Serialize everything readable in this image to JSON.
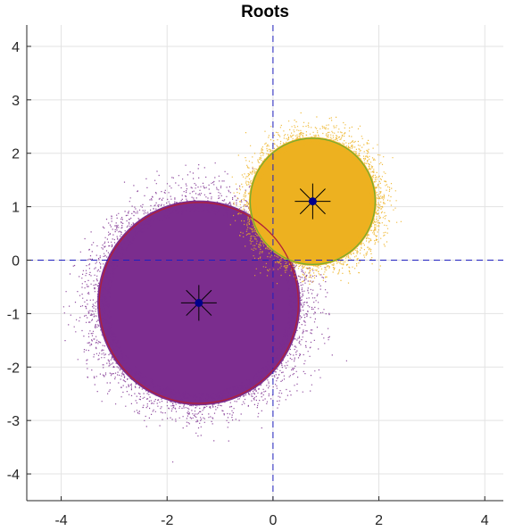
{
  "chart_data": {
    "type": "scatter",
    "title": "Roots",
    "xlabel": "",
    "ylabel": "",
    "xlim": [
      -4.65,
      4.35
    ],
    "ylim": [
      -4.5,
      4.4
    ],
    "grid": true,
    "xticks": [
      -4,
      -2,
      0,
      2,
      4
    ],
    "yticks": [
      -4,
      -3,
      -2,
      -1,
      0,
      1,
      2,
      3,
      4
    ],
    "xtick_labels": [
      "-4",
      "-2",
      "0",
      "2",
      "4"
    ],
    "ytick_labels": [
      "-4",
      "-3",
      "-2",
      "-1",
      "0",
      "1",
      "2",
      "3",
      "4"
    ],
    "axes_lines": {
      "x": 0,
      "y": 0,
      "style": "dashed",
      "color": "#1f1fbf"
    },
    "series": [
      {
        "color": "#7b2d8e",
        "center": [
          -1.4,
          -0.8
        ],
        "spread": 0.62,
        "circle": {
          "center": [
            -1.4,
            -0.8
          ],
          "radius": 1.88,
          "color": "#b0203a"
        },
        "root": [
          -1.4,
          -0.8
        ]
      },
      {
        "color": "#edb120",
        "center": [
          0.75,
          1.1
        ],
        "spread": 0.43,
        "circle": {
          "center": [
            0.75,
            1.1
          ],
          "radius": 1.18,
          "color": "#77ac30"
        },
        "root": [
          0.75,
          1.1
        ]
      }
    ],
    "marker_colors": {
      "star": "#000000",
      "dot": "#00008b"
    }
  }
}
